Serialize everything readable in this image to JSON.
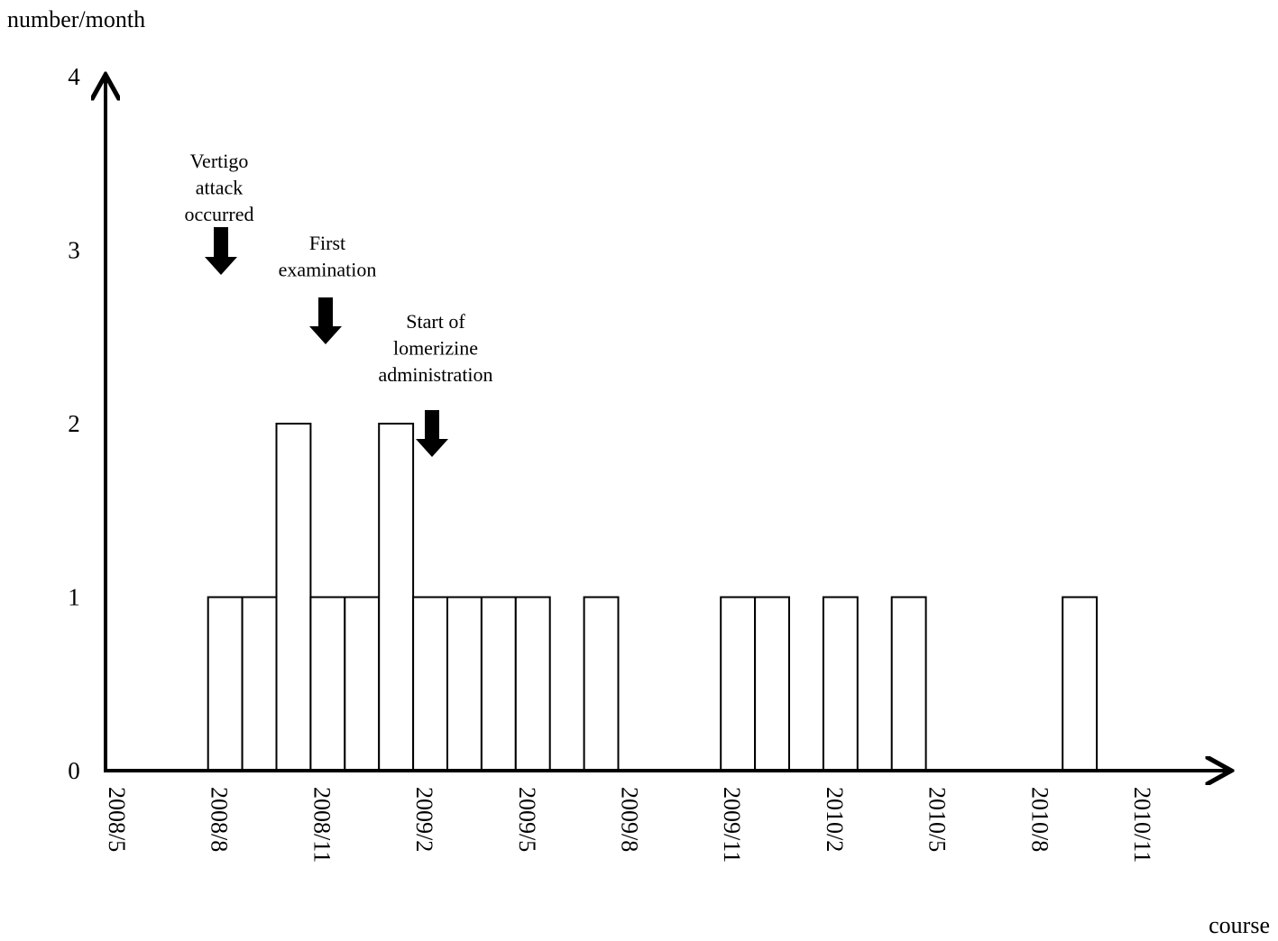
{
  "chart_data": {
    "type": "bar",
    "ylabel": "number/month",
    "xlabel": "course",
    "ylim": [
      0,
      4
    ],
    "yticks": [
      "0",
      "1",
      "2",
      "3",
      "4"
    ],
    "xtick_labels": [
      "2008/5",
      "2008/8",
      "2008/11",
      "2009/2",
      "2009/5",
      "2009/8",
      "2009/11",
      "2010/2",
      "2010/5",
      "2010/8",
      "2010/11"
    ],
    "categories": [
      "2008/5",
      "2008/6",
      "2008/7",
      "2008/8",
      "2008/9",
      "2008/10",
      "2008/11",
      "2008/12",
      "2009/1",
      "2009/2",
      "2009/3",
      "2009/4",
      "2009/5",
      "2009/6",
      "2009/7",
      "2009/8",
      "2009/9",
      "2009/10",
      "2009/11",
      "2009/12",
      "2010/1",
      "2010/2",
      "2010/3",
      "2010/4",
      "2010/5",
      "2010/6",
      "2010/7",
      "2010/8",
      "2010/9",
      "2010/10"
    ],
    "values": [
      0,
      0,
      0,
      1,
      1,
      2,
      1,
      1,
      2,
      1,
      1,
      1,
      1,
      0,
      1,
      0,
      0,
      0,
      1,
      1,
      0,
      1,
      0,
      1,
      0,
      0,
      0,
      0,
      1,
      0
    ],
    "grid": false,
    "colors": {
      "bar_fill": "#ffffff",
      "bar_stroke": "#000000",
      "axis": "#000000"
    },
    "annotations": [
      {
        "lines": [
          "Vertigo",
          "attack",
          "occurred"
        ],
        "month": "2008/8"
      },
      {
        "lines": [
          "First",
          "examination"
        ],
        "month": "2008/11"
      },
      {
        "lines": [
          "Start of",
          "lomerizine",
          "administration"
        ],
        "month": "2009/2"
      }
    ]
  }
}
